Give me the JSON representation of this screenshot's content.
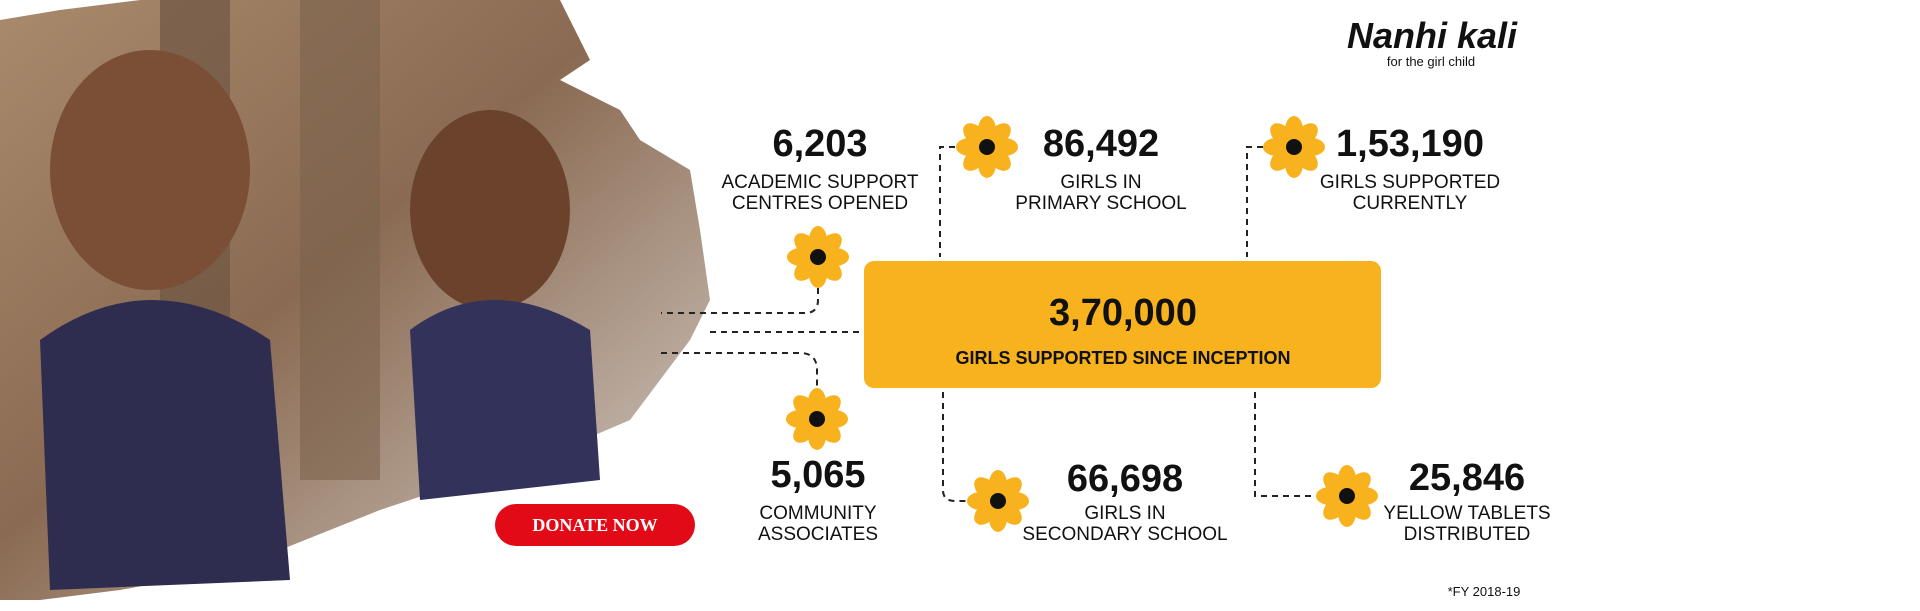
{
  "logo": {
    "name": "Nanhi kali",
    "tagline": "for the girl child"
  },
  "headline": {
    "value": "3,70,000",
    "label": "GIRLS SUPPORTED SINCE INCEPTION"
  },
  "stats": [
    {
      "value": "6,203",
      "label": [
        "ACADEMIC SUPPORT",
        "CENTRES OPENED"
      ]
    },
    {
      "value": "86,492",
      "label": [
        "GIRLS IN",
        "PRIMARY SCHOOL"
      ]
    },
    {
      "value": "1,53,190",
      "label": [
        "GIRLS SUPPORTED",
        "CURRENTLY"
      ]
    },
    {
      "value": "5,065",
      "label": [
        "COMMUNITY",
        "ASSOCIATES"
      ]
    },
    {
      "value": "66,698",
      "label": [
        "GIRLS IN",
        "SECONDARY SCHOOL"
      ]
    },
    {
      "value": "25,846",
      "label": [
        "YELLOW TABLETS",
        "DISTRIBUTED"
      ]
    }
  ],
  "button": "DONATE NOW",
  "footnote": "*FY 2018-19"
}
